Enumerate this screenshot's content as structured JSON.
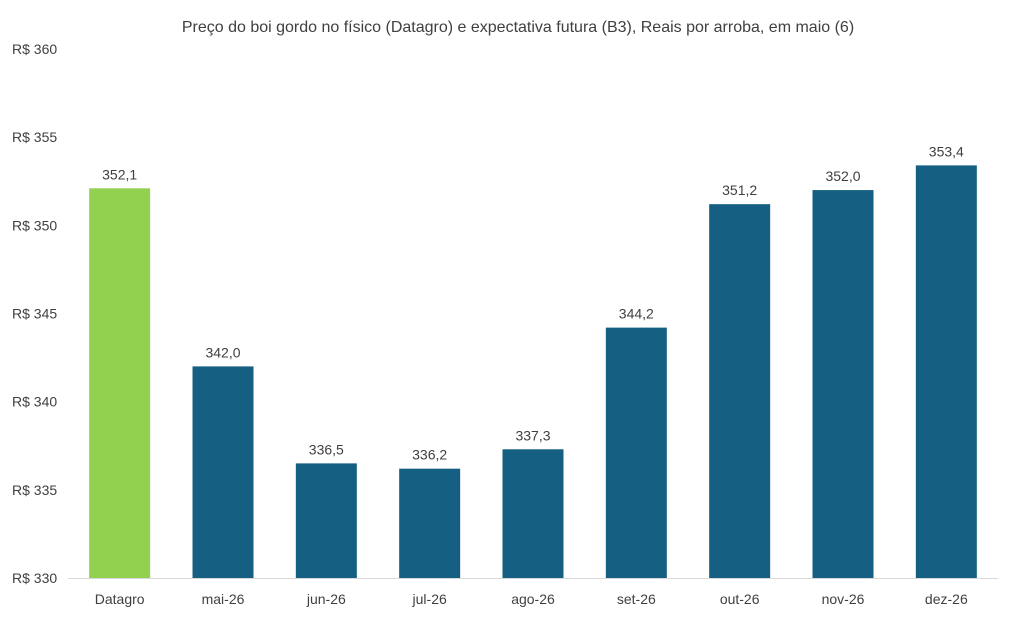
{
  "chart_data": {
    "type": "bar",
    "title": "Preço do boi gordo no físico (Datagro)  e expectativa futura (B3), Reais por arroba, em maio (6)",
    "xlabel": "",
    "ylabel": "",
    "ylim": [
      330,
      360
    ],
    "y_ticks": [
      330,
      335,
      340,
      345,
      350,
      355,
      360
    ],
    "y_tick_labels": [
      "R$ 330",
      "R$ 335",
      "R$ 340",
      "R$ 345",
      "R$ 350",
      "R$ 355",
      "R$ 360"
    ],
    "categories": [
      "Datagro",
      "mai-26",
      "jun-26",
      "jul-26",
      "ago-26",
      "set-26",
      "out-26",
      "nov-26",
      "dez-26"
    ],
    "values": [
      352.1,
      342.0,
      336.5,
      336.2,
      337.3,
      344.2,
      351.2,
      352.0,
      353.4
    ],
    "data_labels": [
      "352,1",
      "342,0",
      "336,5",
      "336,2",
      "337,3",
      "344,2",
      "351,2",
      "352,0",
      "353,4"
    ],
    "bar_colors": [
      "#92d050",
      "#156082",
      "#156082",
      "#156082",
      "#156082",
      "#156082",
      "#156082",
      "#156082",
      "#156082"
    ],
    "grid": false,
    "legend": "none"
  }
}
